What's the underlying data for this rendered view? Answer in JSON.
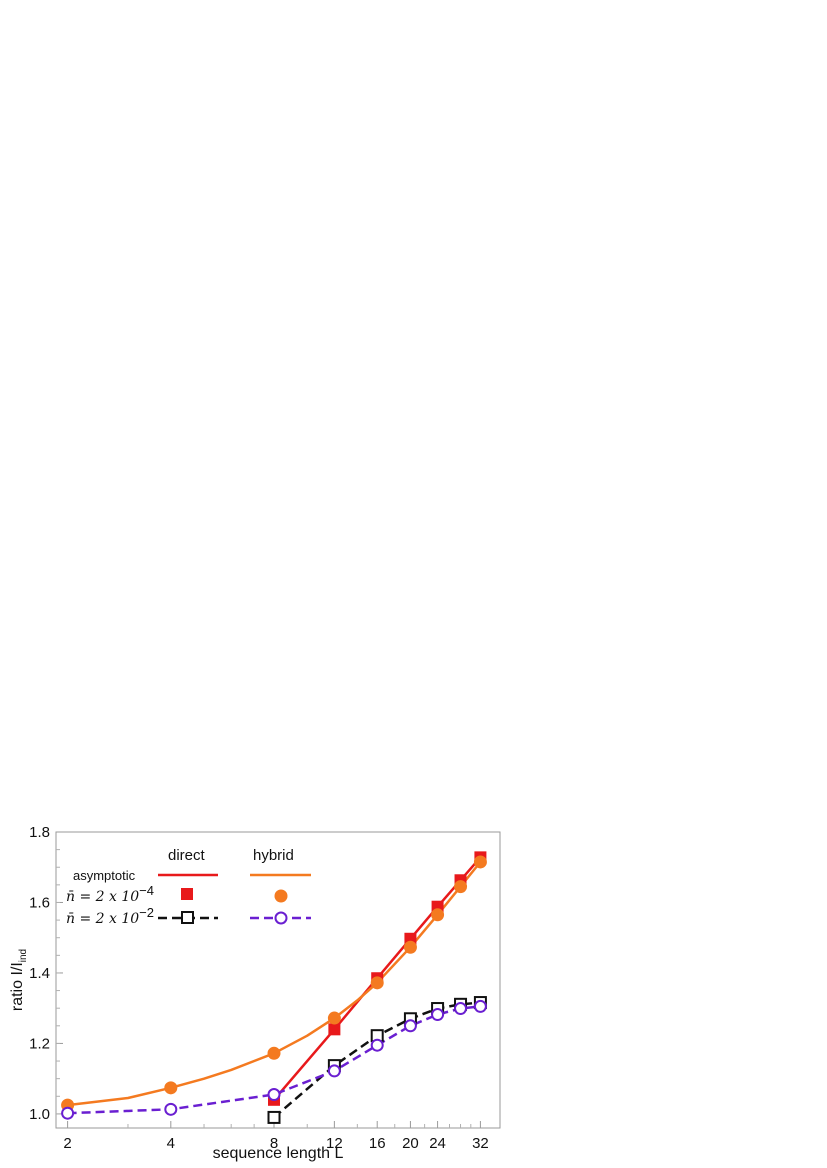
{
  "chart_data": {
    "type": "line",
    "xlabel": "sequence length L",
    "ylabel_main": "ratio I/I",
    "ylabel_sub": "ind",
    "x_scale": "log2",
    "xlim": [
      1.85,
      36.5
    ],
    "ylim": [
      0.96,
      1.8
    ],
    "x_ticks": [
      2,
      4,
      8,
      12,
      16,
      20,
      24,
      32
    ],
    "x_tick_labels": [
      "2",
      "4",
      "8",
      "12",
      "16",
      "20",
      "24",
      "32"
    ],
    "y_ticks": [
      1.0,
      1.2,
      1.4,
      1.6,
      1.8
    ],
    "y_tick_labels": [
      "1.0",
      "1.2",
      "1.4",
      "1.6",
      "1.8"
    ],
    "grid": false,
    "legend": {
      "placement": "top-left",
      "col_headers": [
        "direct",
        "hybrid"
      ],
      "rows": [
        {
          "label": "asymptotic"
        },
        {
          "label_prefix": "n̄ = 2 x 10",
          "label_exp": "−4"
        },
        {
          "label_prefix": "n̄ = 2 x 10",
          "label_exp": "−2"
        }
      ]
    },
    "series": [
      {
        "key": "direct_asymptotic",
        "color": "#e8191b",
        "style": "solid",
        "marker": "none",
        "x": [
          8,
          12,
          16,
          20,
          24,
          28,
          32
        ],
        "y": [
          1.04,
          1.24,
          1.385,
          1.497,
          1.588,
          1.663,
          1.728
        ]
      },
      {
        "key": "hybrid_asymptotic",
        "color": "#f47a20",
        "style": "solid",
        "marker": "none",
        "x": [
          2,
          3,
          4,
          5,
          6,
          8,
          10,
          12,
          14,
          16,
          20,
          24,
          28,
          32
        ],
        "y": [
          1.025,
          1.045,
          1.074,
          1.1,
          1.125,
          1.172,
          1.222,
          1.272,
          1.322,
          1.372,
          1.473,
          1.565,
          1.645,
          1.715
        ]
      },
      {
        "key": "direct_nbar_1e-4",
        "color": "#e8191b",
        "style": "none",
        "marker": "square-filled",
        "x": [
          8,
          12,
          16,
          20,
          24,
          28,
          32
        ],
        "y": [
          1.04,
          1.24,
          1.385,
          1.497,
          1.588,
          1.663,
          1.728
        ]
      },
      {
        "key": "hybrid_nbar_1e-4",
        "color": "#f47a20",
        "style": "none",
        "marker": "circle-filled",
        "x": [
          2,
          4,
          8,
          12,
          16,
          20,
          24,
          28,
          32
        ],
        "y": [
          1.025,
          1.074,
          1.172,
          1.272,
          1.372,
          1.473,
          1.565,
          1.645,
          1.715
        ]
      },
      {
        "key": "direct_nbar_1e-2",
        "color": "#111111",
        "style": "dashed",
        "marker": "square-open",
        "x": [
          8,
          12,
          16,
          20,
          24,
          28,
          32
        ],
        "y": [
          0.99,
          1.137,
          1.222,
          1.27,
          1.299,
          1.311,
          1.316
        ]
      },
      {
        "key": "hybrid_nbar_1e-2",
        "color": "#6a1fd1",
        "style": "dashed",
        "marker": "circle-open",
        "x": [
          2,
          4,
          8,
          12,
          16,
          20,
          24,
          28,
          32
        ],
        "y": [
          1.002,
          1.013,
          1.055,
          1.122,
          1.195,
          1.25,
          1.282,
          1.299,
          1.305
        ]
      }
    ]
  }
}
